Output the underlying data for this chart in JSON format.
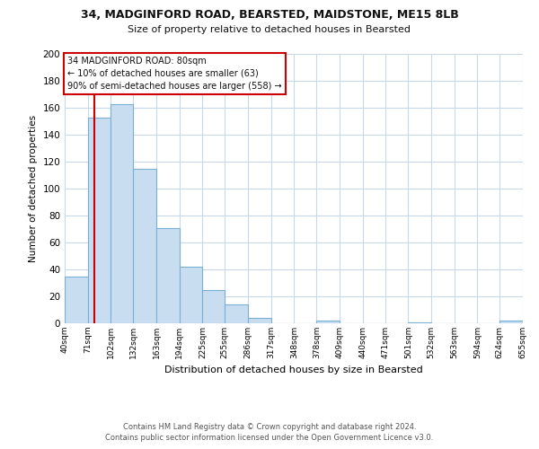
{
  "title1": "34, MADGINFORD ROAD, BEARSTED, MAIDSTONE, ME15 8LB",
  "title2": "Size of property relative to detached houses in Bearsted",
  "xlabel": "Distribution of detached houses by size in Bearsted",
  "ylabel": "Number of detached properties",
  "bar_edges": [
    40,
    71,
    102,
    132,
    163,
    194,
    225,
    255,
    286,
    317,
    348,
    378,
    409,
    440,
    471,
    501,
    532,
    563,
    594,
    624,
    655
  ],
  "bar_heights": [
    35,
    153,
    163,
    115,
    71,
    42,
    25,
    14,
    4,
    0,
    0,
    2,
    0,
    0,
    0,
    1,
    0,
    0,
    0,
    2
  ],
  "bar_color": "#c9ddf0",
  "bar_edgecolor": "#7aafd4",
  "tick_labels": [
    "40sqm",
    "71sqm",
    "102sqm",
    "132sqm",
    "163sqm",
    "194sqm",
    "225sqm",
    "255sqm",
    "286sqm",
    "317sqm",
    "348sqm",
    "378sqm",
    "409sqm",
    "440sqm",
    "471sqm",
    "501sqm",
    "532sqm",
    "563sqm",
    "594sqm",
    "624sqm",
    "655sqm"
  ],
  "vline_x": 80,
  "vline_color": "#cc0000",
  "ylim": [
    0,
    200
  ],
  "yticks": [
    0,
    20,
    40,
    60,
    80,
    100,
    120,
    140,
    160,
    180,
    200
  ],
  "annotation_line1": "34 MADGINFORD ROAD: 80sqm",
  "annotation_line2": "← 10% of detached houses are smaller (63)",
  "annotation_line3": "90% of semi-detached houses are larger (558) →",
  "footnote1": "Contains HM Land Registry data © Crown copyright and database right 2024.",
  "footnote2": "Contains public sector information licensed under the Open Government Licence v3.0.",
  "background_color": "#ffffff",
  "grid_color": "#c8d8e8"
}
